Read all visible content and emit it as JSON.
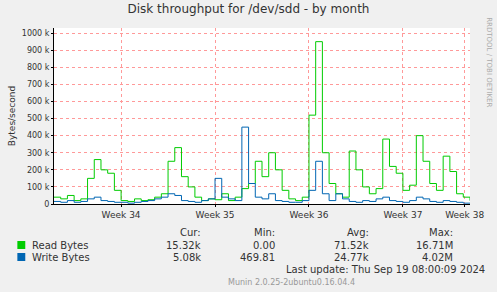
{
  "chart_data": {
    "type": "line",
    "title": "Disk throughput for /dev/sdd - by month",
    "y_label": "Bytes/second",
    "x": [
      0,
      0.5,
      1,
      1.5,
      2,
      2.5,
      3,
      3.5,
      4,
      4.5,
      5,
      5.5,
      6,
      6.5,
      7,
      7.5,
      8,
      8.5,
      9,
      9.5,
      10,
      10.5,
      11,
      11.5,
      12,
      12.5,
      13,
      13.5,
      14,
      14.5,
      15,
      15.5,
      16,
      16.5,
      17,
      17.5,
      18,
      18.5,
      19,
      19.5,
      20,
      20.5,
      21,
      21.5,
      22,
      22.5,
      23,
      23.5,
      24,
      24.5,
      25,
      25.5,
      26,
      26.5,
      27,
      27.5,
      28,
      28.5,
      29,
      29.5,
      30,
      30.5,
      31
    ],
    "xlim": [
      0,
      31
    ],
    "xticks": [
      {
        "value": 5,
        "label": "Week 34"
      },
      {
        "value": 12,
        "label": "Week 35"
      },
      {
        "value": 19,
        "label": "Week 36"
      },
      {
        "value": 26,
        "label": "Week 37"
      },
      {
        "value": 30.6,
        "label": "Week 38"
      }
    ],
    "ylim": [
      0,
      1030000
    ],
    "yticks": [
      0,
      {
        "value": 100000,
        "label": "100 k"
      },
      {
        "value": 200000,
        "label": "200 k"
      },
      {
        "value": 300000,
        "label": "300 k"
      },
      {
        "value": 400000,
        "label": "400 k"
      },
      {
        "value": 500000,
        "label": "500 k"
      },
      {
        "value": 600000,
        "label": "600 k"
      },
      {
        "value": 700000,
        "label": "700 k"
      },
      {
        "value": 800000,
        "label": "800 k"
      },
      {
        "value": 900000,
        "label": "900 k"
      },
      {
        "value": 1000000,
        "label": "1000 k"
      }
    ],
    "grid": true,
    "line_style": "step",
    "stats_columns": [
      "Cur:",
      "Min:",
      "Avg:",
      "Max:"
    ],
    "series": [
      {
        "name": "Read Bytes",
        "color": "#00cc00",
        "values": [
          40000,
          30000,
          50000,
          20000,
          30000,
          150000,
          260000,
          200000,
          180000,
          80000,
          20000,
          15000,
          30000,
          20000,
          25000,
          40000,
          60000,
          250000,
          330000,
          160000,
          100000,
          40000,
          20000,
          30000,
          25000,
          60000,
          20000,
          40000,
          90000,
          120000,
          250000,
          160000,
          300000,
          200000,
          80000,
          30000,
          20000,
          40000,
          520000,
          950000,
          300000,
          120000,
          60000,
          40000,
          310000,
          200000,
          100000,
          60000,
          90000,
          380000,
          220000,
          180000,
          80000,
          110000,
          400000,
          250000,
          120000,
          80000,
          280000,
          190000,
          60000,
          40000,
          20000
        ],
        "stats": [
          "15.32k",
          "0.00",
          "71.52k",
          "16.71M"
        ]
      },
      {
        "name": "Write Bytes",
        "color": "#0066b3",
        "values": [
          15000,
          10000,
          20000,
          10000,
          15000,
          30000,
          40000,
          20000,
          15000,
          10000,
          10000,
          5000,
          10000,
          15000,
          20000,
          30000,
          40000,
          60000,
          50000,
          20000,
          15000,
          10000,
          20000,
          30000,
          150000,
          40000,
          30000,
          20000,
          450000,
          120000,
          40000,
          30000,
          60000,
          20000,
          15000,
          10000,
          10000,
          20000,
          80000,
          250000,
          60000,
          20000,
          60000,
          30000,
          15000,
          10000,
          20000,
          15000,
          30000,
          40000,
          20000,
          15000,
          10000,
          20000,
          40000,
          30000,
          15000,
          10000,
          20000,
          15000,
          10000,
          5000,
          5000
        ],
        "stats": [
          "5.08k",
          "469.81",
          "24.77k",
          "4.02M"
        ]
      }
    ],
    "footer": [
      "Last update: Thu Sep 19 08:00:09 2024",
      "Munin 2.0.25-2ubuntu0.16.04.4"
    ],
    "side_text": "RRDTOOL / TOBI OETIKER"
  }
}
